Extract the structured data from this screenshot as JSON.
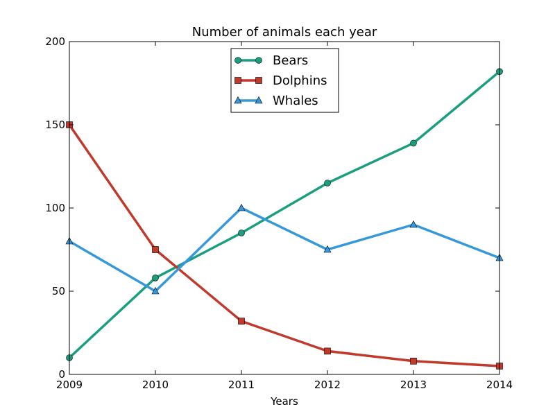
{
  "chart_data": {
    "type": "line",
    "title": "Number of animals each year",
    "xlabel": "Years",
    "ylabel": "",
    "x": [
      2009,
      2010,
      2011,
      2012,
      2013,
      2014
    ],
    "xlim": [
      2009,
      2014
    ],
    "ylim": [
      0,
      200
    ],
    "xticks": [
      "2009",
      "2010",
      "2011",
      "2012",
      "2013",
      "2014"
    ],
    "yticks": [
      "0",
      "50",
      "100",
      "150",
      "200"
    ],
    "grid": false,
    "legend_position": "top-center",
    "series": [
      {
        "name": "Bears",
        "values": [
          10,
          58,
          85,
          115,
          139,
          182
        ],
        "color": "#1a9e80",
        "marker": "circle"
      },
      {
        "name": "Dolphins",
        "values": [
          150,
          75,
          32,
          14,
          8,
          5
        ],
        "color": "#c0392b",
        "marker": "square"
      },
      {
        "name": "Whales",
        "values": [
          80,
          50,
          100,
          75,
          90,
          70
        ],
        "color": "#3498db",
        "marker": "triangle"
      }
    ]
  }
}
